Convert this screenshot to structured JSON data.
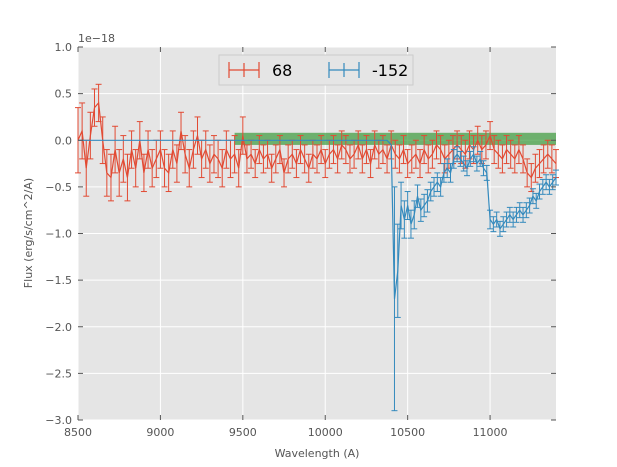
{
  "chart_data": {
    "type": "line",
    "xlabel": "Wavelength (A)",
    "ylabel": "Flux (erg/s/cm^2/A)",
    "offset_label": "1e−18",
    "xlim": [
      8500,
      11400
    ],
    "ylim": [
      -3.0,
      1.0
    ],
    "x_ticks": [
      "8500",
      "9000",
      "9500",
      "10000",
      "10500",
      "11000"
    ],
    "y_ticks": [
      "1.0",
      "0.5",
      "0.0",
      "−0.5",
      "−1.0",
      "−1.5",
      "−2.0",
      "−2.5",
      "−3.0"
    ],
    "grid": true,
    "legend_position": "top-center",
    "highlight_band": {
      "x": [
        9450,
        11400
      ],
      "y": [
        -0.05,
        0.08
      ],
      "color": "#3a9a3a"
    },
    "series": [
      {
        "name": "68",
        "color": "#E24A33",
        "x": [
          8500,
          8525,
          8550,
          8575,
          8600,
          8625,
          8650,
          8675,
          8700,
          8725,
          8750,
          8775,
          8800,
          8825,
          8850,
          8875,
          8900,
          8925,
          8950,
          8975,
          9000,
          9025,
          9050,
          9075,
          9100,
          9125,
          9150,
          9175,
          9200,
          9225,
          9250,
          9275,
          9300,
          9325,
          9350,
          9375,
          9400,
          9425,
          9450,
          9475,
          9500,
          9525,
          9550,
          9575,
          9600,
          9625,
          9650,
          9675,
          9700,
          9725,
          9750,
          9775,
          9800,
          9825,
          9850,
          9875,
          9900,
          9925,
          9950,
          9975,
          10000,
          10025,
          10050,
          10075,
          10100,
          10125,
          10150,
          10175,
          10200,
          10225,
          10250,
          10275,
          10300,
          10325,
          10350,
          10375,
          10400,
          10425,
          10450,
          10475,
          10500,
          10525,
          10550,
          10575,
          10600,
          10625,
          10650,
          10675,
          10700,
          10725,
          10750,
          10775,
          10800,
          10825,
          10850,
          10875,
          10900,
          10925,
          10950,
          10975,
          11000,
          11025,
          11050,
          11075,
          11100,
          11125,
          11150,
          11175,
          11200,
          11225,
          11250,
          11275,
          11300,
          11325,
          11350,
          11375,
          11400
        ],
        "values": [
          0.0,
          0.1,
          -0.3,
          0.05,
          0.35,
          0.4,
          0.0,
          -0.35,
          -0.4,
          -0.1,
          -0.35,
          -0.2,
          -0.4,
          -0.1,
          -0.3,
          0.0,
          -0.35,
          -0.1,
          -0.3,
          -0.2,
          -0.1,
          -0.3,
          -0.35,
          -0.1,
          -0.25,
          0.1,
          -0.15,
          -0.3,
          -0.1,
          0.05,
          -0.2,
          -0.1,
          -0.25,
          -0.15,
          -0.2,
          -0.3,
          -0.1,
          -0.2,
          -0.15,
          -0.3,
          0.05,
          -0.2,
          -0.15,
          -0.25,
          -0.1,
          -0.2,
          -0.15,
          -0.3,
          -0.2,
          -0.1,
          -0.35,
          -0.2,
          -0.15,
          -0.25,
          -0.1,
          -0.2,
          -0.3,
          -0.15,
          -0.2,
          -0.1,
          -0.25,
          -0.15,
          -0.1,
          -0.2,
          -0.05,
          -0.1,
          -0.2,
          -0.15,
          -0.05,
          -0.2,
          -0.1,
          -0.25,
          -0.05,
          -0.15,
          -0.1,
          -0.2,
          -0.05,
          -0.15,
          -0.2,
          -0.1,
          -0.25,
          -0.2,
          -0.15,
          -0.25,
          -0.1,
          -0.2,
          -0.15,
          -0.05,
          -0.1,
          -0.2,
          -0.15,
          -0.1,
          -0.05,
          -0.1,
          -0.15,
          -0.05,
          -0.1,
          0.0,
          -0.1,
          -0.05,
          0.05,
          -0.1,
          -0.15,
          -0.2,
          -0.1,
          -0.15,
          -0.2,
          -0.1,
          -0.2,
          -0.35,
          -0.4,
          -0.3,
          -0.25,
          -0.2,
          -0.15,
          -0.2,
          -0.25
        ],
        "err": [
          0.35,
          0.3,
          0.3,
          0.25,
          0.2,
          0.2,
          0.25,
          0.25,
          0.25,
          0.25,
          0.25,
          0.25,
          0.25,
          0.2,
          0.2,
          0.2,
          0.2,
          0.2,
          0.2,
          0.2,
          0.2,
          0.2,
          0.2,
          0.2,
          0.2,
          0.2,
          0.2,
          0.2,
          0.2,
          0.2,
          0.2,
          0.2,
          0.2,
          0.2,
          0.2,
          0.2,
          0.2,
          0.2,
          0.2,
          0.2,
          0.2,
          0.15,
          0.15,
          0.15,
          0.15,
          0.15,
          0.15,
          0.15,
          0.15,
          0.15,
          0.15,
          0.15,
          0.15,
          0.15,
          0.15,
          0.15,
          0.15,
          0.15,
          0.15,
          0.15,
          0.15,
          0.15,
          0.15,
          0.15,
          0.15,
          0.15,
          0.15,
          0.15,
          0.15,
          0.15,
          0.15,
          0.15,
          0.15,
          0.15,
          0.15,
          0.15,
          0.15,
          0.15,
          0.15,
          0.15,
          0.15,
          0.15,
          0.15,
          0.15,
          0.15,
          0.15,
          0.15,
          0.15,
          0.15,
          0.15,
          0.15,
          0.15,
          0.15,
          0.15,
          0.15,
          0.15,
          0.15,
          0.15,
          0.15,
          0.15,
          0.15,
          0.15,
          0.15,
          0.15,
          0.15,
          0.15,
          0.15,
          0.15,
          0.15,
          0.15,
          0.15,
          0.15,
          0.15,
          0.15,
          0.15,
          0.15,
          0.15
        ]
      },
      {
        "name": "-152",
        "color": "#348ABD",
        "x": [
          8500,
          8600,
          8700,
          8800,
          8900,
          9000,
          9100,
          9200,
          9300,
          9400,
          9500,
          9600,
          9700,
          9800,
          9900,
          10000,
          10100,
          10200,
          10300,
          10375,
          10400,
          10420,
          10440,
          10460,
          10480,
          10500,
          10520,
          10540,
          10560,
          10580,
          10600,
          10620,
          10640,
          10660,
          10680,
          10700,
          10720,
          10740,
          10760,
          10780,
          10800,
          10820,
          10840,
          10860,
          10880,
          10900,
          10920,
          10940,
          10960,
          10980,
          11000,
          11020,
          11040,
          11060,
          11080,
          11100,
          11120,
          11140,
          11160,
          11180,
          11200,
          11220,
          11240,
          11260,
          11280,
          11300,
          11320,
          11340,
          11360,
          11380,
          11400
        ],
        "values": [
          0.0,
          0.0,
          0.0,
          0.0,
          0.0,
          0.0,
          0.0,
          0.0,
          0.0,
          0.0,
          0.0,
          0.0,
          0.0,
          0.0,
          0.0,
          0.0,
          0.0,
          0.0,
          0.0,
          0.0,
          -0.05,
          -1.7,
          -1.4,
          -0.7,
          -0.85,
          -0.7,
          -0.9,
          -0.8,
          -0.6,
          -0.75,
          -0.7,
          -0.65,
          -0.55,
          -0.5,
          -0.45,
          -0.5,
          -0.35,
          -0.3,
          -0.35,
          -0.2,
          -0.15,
          -0.2,
          -0.25,
          -0.3,
          -0.2,
          -0.15,
          -0.25,
          -0.2,
          -0.3,
          -0.35,
          -0.85,
          -0.9,
          -0.85,
          -0.95,
          -0.9,
          -0.85,
          -0.8,
          -0.85,
          -0.8,
          -0.75,
          -0.8,
          -0.75,
          -0.7,
          -0.6,
          -0.65,
          -0.55,
          -0.5,
          -0.45,
          -0.5,
          -0.45,
          -0.4
        ],
        "err": [
          0.0,
          0.0,
          0.0,
          0.0,
          0.0,
          0.0,
          0.0,
          0.0,
          0.0,
          0.0,
          0.0,
          0.0,
          0.0,
          0.0,
          0.0,
          0.0,
          0.0,
          0.0,
          0.0,
          0.0,
          0.0,
          1.2,
          0.5,
          0.25,
          0.2,
          0.15,
          0.15,
          0.15,
          0.12,
          0.12,
          0.12,
          0.12,
          0.1,
          0.1,
          0.1,
          0.1,
          0.1,
          0.1,
          0.1,
          0.1,
          0.08,
          0.08,
          0.08,
          0.08,
          0.08,
          0.08,
          0.08,
          0.08,
          0.08,
          0.08,
          0.1,
          0.08,
          0.08,
          0.08,
          0.08,
          0.08,
          0.08,
          0.08,
          0.08,
          0.08,
          0.08,
          0.08,
          0.08,
          0.08,
          0.08,
          0.08,
          0.08,
          0.08,
          0.08,
          0.08,
          0.08
        ]
      }
    ]
  }
}
